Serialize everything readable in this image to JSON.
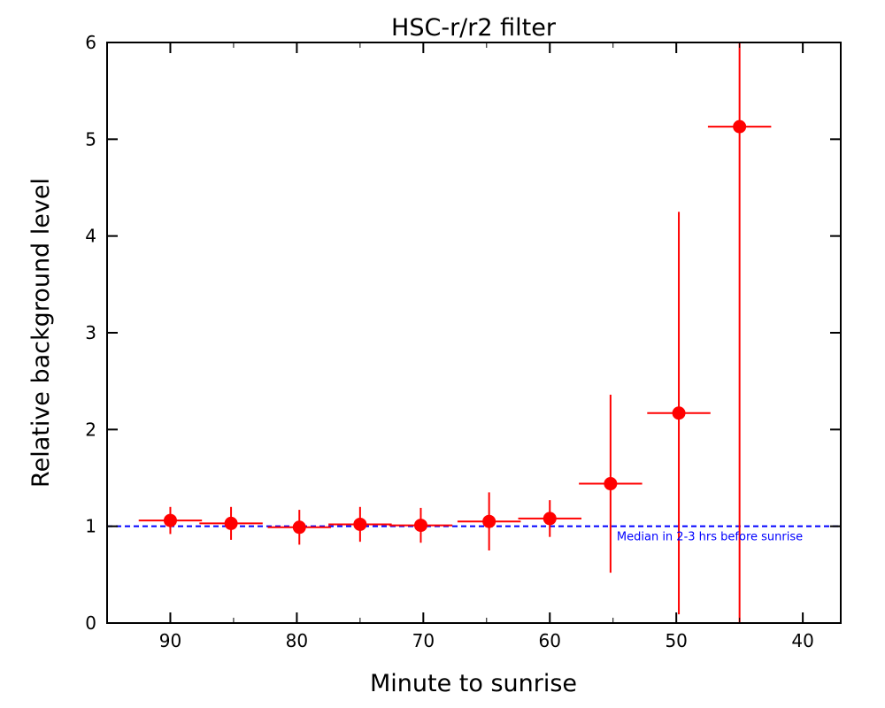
{
  "chart_data": {
    "type": "scatter",
    "title": "HSC-r/r2 filter",
    "xlabel": "Minute to sunrise",
    "ylabel": "Relative background level",
    "xlim": [
      95,
      37
    ],
    "ylim": [
      0,
      6
    ],
    "x_reversed": true,
    "xticks": [
      90,
      80,
      70,
      60,
      50,
      40
    ],
    "xtick_labels": [
      "90",
      "80",
      "70",
      "60",
      "50",
      "40"
    ],
    "x_minor_ticks": [
      85,
      75,
      65,
      55,
      45
    ],
    "yticks": [
      0,
      1,
      2,
      3,
      4,
      5,
      6
    ],
    "ytick_labels": [
      "0",
      "1",
      "2",
      "3",
      "4",
      "5",
      "6"
    ],
    "grid": false,
    "series": [
      {
        "name": "HSC-r/r2",
        "color": "#ff0000",
        "x": [
          90.0,
          85.2,
          79.8,
          75.0,
          70.2,
          64.8,
          60.0,
          55.2,
          49.8,
          45.0
        ],
        "y": [
          1.06,
          1.03,
          0.99,
          1.02,
          1.01,
          1.05,
          1.08,
          1.44,
          2.17,
          5.13
        ],
        "xerr": [
          2.5,
          2.5,
          2.5,
          2.5,
          2.5,
          2.5,
          2.5,
          2.5,
          2.5,
          2.5
        ],
        "yerr": [
          0.14,
          0.17,
          0.18,
          0.18,
          0.18,
          0.3,
          0.19,
          0.92,
          2.08,
          5.13
        ]
      }
    ],
    "reference_line": {
      "y": 1.0,
      "color": "#0000ff",
      "style": "dashed",
      "label": "Median in 2-3 hrs before sunrise"
    }
  }
}
